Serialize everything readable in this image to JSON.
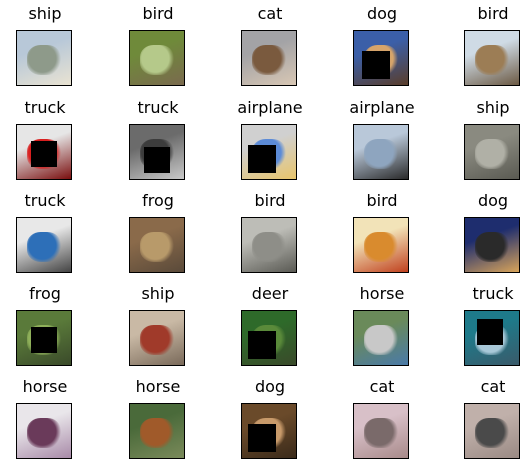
{
  "images": [
    {
      "label": "ship",
      "colors": [
        "#b8c8d8",
        "#8e9a8a",
        "#e9e3d2"
      ],
      "occluded": false
    },
    {
      "label": "bird",
      "colors": [
        "#6f8a3a",
        "#b5c98a",
        "#7a6a4e"
      ],
      "occluded": false
    },
    {
      "label": "cat",
      "colors": [
        "#a3a3a6",
        "#7a5a3e",
        "#d8c7b4"
      ],
      "occluded": false
    },
    {
      "label": "dog",
      "colors": [
        "#3b5fa8",
        "#d6a46a",
        "#5a3d2a"
      ],
      "occluded": true
    },
    {
      "label": "bird",
      "colors": [
        "#cfdbe5",
        "#9c7d55",
        "#6c5a44"
      ],
      "occluded": false
    },
    {
      "label": "truck",
      "colors": [
        "#e6e6e6",
        "#d81f1f",
        "#7a0e0e"
      ],
      "occluded": true
    },
    {
      "label": "truck",
      "colors": [
        "#6b6b6b",
        "#3c3c3c",
        "#c8c8c8"
      ],
      "occluded": true
    },
    {
      "label": "airplane",
      "colors": [
        "#d0d0d0",
        "#5c8bd6",
        "#e8c56b"
      ],
      "occluded": true
    },
    {
      "label": "airplane",
      "colors": [
        "#b9c8d9",
        "#8ea5bf",
        "#2a2a2a"
      ],
      "occluded": false
    },
    {
      "label": "ship",
      "colors": [
        "#8a8a80",
        "#b0b0a6",
        "#5a5a52"
      ],
      "occluded": false
    },
    {
      "label": "truck",
      "colors": [
        "#e8e8e8",
        "#2d6fb8",
        "#444444"
      ],
      "occluded": false
    },
    {
      "label": "frog",
      "colors": [
        "#8a6a4a",
        "#b89a6a",
        "#5a4a3a"
      ],
      "occluded": false
    },
    {
      "label": "bird",
      "colors": [
        "#bdbdb7",
        "#8e8e88",
        "#5a5a54"
      ],
      "occluded": false
    },
    {
      "label": "bird",
      "colors": [
        "#f2e3b8",
        "#d98b2e",
        "#c0411e"
      ],
      "occluded": false
    },
    {
      "label": "dog",
      "colors": [
        "#1e2d6e",
        "#2a2a2a",
        "#d8a45a"
      ],
      "occluded": false
    },
    {
      "label": "frog",
      "colors": [
        "#5a7a3a",
        "#8fb05a",
        "#3a4a2a"
      ],
      "occluded": true
    },
    {
      "label": "ship",
      "colors": [
        "#c9b9a5",
        "#a03a2a",
        "#7a6a5a"
      ],
      "occluded": false
    },
    {
      "label": "deer",
      "colors": [
        "#2e6a2a",
        "#5a8a3a",
        "#3a4a2a"
      ],
      "occluded": true
    },
    {
      "label": "horse",
      "colors": [
        "#6a8a5a",
        "#c8c8c8",
        "#4a7aa8"
      ],
      "occluded": false
    },
    {
      "label": "truck",
      "colors": [
        "#1e7a8a",
        "#a8c8d8",
        "#3a5a6a"
      ],
      "occluded": true
    },
    {
      "label": "horse",
      "colors": [
        "#e9e6ea",
        "#6a3a5a",
        "#a88aa8"
      ],
      "occluded": false
    },
    {
      "label": "horse",
      "colors": [
        "#4a6a3a",
        "#a05a2a",
        "#7a8a5a"
      ],
      "occluded": false
    },
    {
      "label": "dog",
      "colors": [
        "#6a4a2a",
        "#c89a6a",
        "#3a2a1a"
      ],
      "occluded": true
    },
    {
      "label": "cat",
      "colors": [
        "#d8c0c8",
        "#7a6a6a",
        "#a88a8a"
      ],
      "occluded": false
    },
    {
      "label": "cat",
      "colors": [
        "#c0b0aa",
        "#4a4a4a",
        "#9a8a84"
      ],
      "occluded": false
    }
  ]
}
